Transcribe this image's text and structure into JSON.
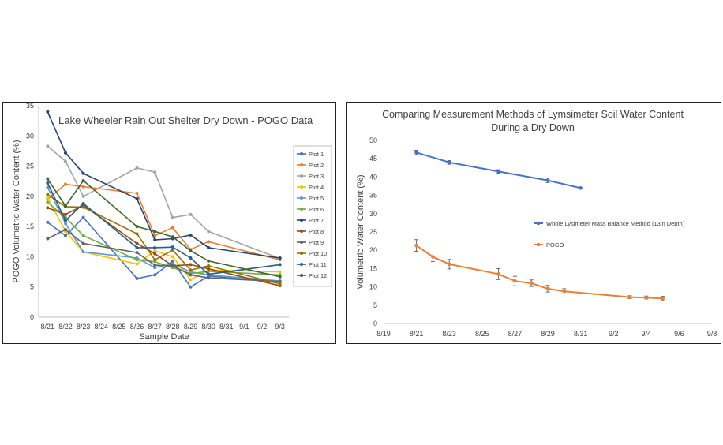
{
  "chart_data": [
    {
      "type": "line",
      "title": "Lake Wheeler Rain Out Shelter Dry Down - POGO Data",
      "xlabel": "Sample Date",
      "ylabel": "POGO Volumetric Water Content (%)",
      "categories": [
        "8/21",
        "8/22",
        "8/23",
        "8/24",
        "8/25",
        "8/26",
        "8/27",
        "8/28",
        "8/29",
        "8/30",
        "8/31",
        "9/1",
        "9/2",
        "9/3"
      ],
      "ylim": [
        0,
        35
      ],
      "yticks": [
        "0",
        "5",
        "10",
        "15",
        "20",
        "25",
        "30",
        "35"
      ],
      "grid": false,
      "legend_position": "right",
      "series": [
        {
          "name": "Plot 1",
          "color": "#4472C4",
          "values": [
            15.7,
            13.5,
            16.5,
            null,
            null,
            6.4,
            7.0,
            9.2,
            5.0,
            6.8,
            null,
            null,
            null,
            5.8
          ]
        },
        {
          "name": "Plot 2",
          "color": "#ED7D31",
          "values": [
            19.5,
            22.0,
            21.6,
            null,
            null,
            20.5,
            13.5,
            14.8,
            11.2,
            12.5,
            null,
            null,
            null,
            9.5
          ]
        },
        {
          "name": "Plot 3",
          "color": "#A5A5A5",
          "values": [
            28.3,
            25.8,
            20.0,
            null,
            null,
            24.7,
            24.0,
            16.5,
            17.0,
            14.2,
            null,
            null,
            null,
            9.7
          ]
        },
        {
          "name": "Plot 4",
          "color": "#FFC000",
          "values": [
            19.8,
            14.2,
            10.8,
            null,
            null,
            8.8,
            11.0,
            10.0,
            6.2,
            7.8,
            null,
            null,
            null,
            7.5
          ]
        },
        {
          "name": "Plot 5",
          "color": "#5B9BD5",
          "values": [
            21.5,
            15.5,
            10.8,
            null,
            null,
            9.8,
            8.2,
            8.8,
            7.5,
            7.0,
            null,
            null,
            null,
            6.0
          ]
        },
        {
          "name": "Plot 6",
          "color": "#70AD47",
          "values": [
            19.0,
            16.5,
            13.5,
            null,
            null,
            9.5,
            9.2,
            8.2,
            7.2,
            7.6,
            null,
            null,
            null,
            7.0
          ]
        },
        {
          "name": "Plot 7",
          "color": "#264478",
          "values": [
            34.0,
            27.2,
            23.8,
            null,
            null,
            19.6,
            12.8,
            13.0,
            13.6,
            11.5,
            null,
            null,
            null,
            9.8
          ]
        },
        {
          "name": "Plot 8",
          "color": "#9E480E",
          "values": [
            18.1,
            17.0,
            18.5,
            null,
            null,
            12.2,
            10.5,
            8.5,
            8.7,
            8.0,
            null,
            null,
            null,
            5.2
          ]
        },
        {
          "name": "Plot 9",
          "color": "#636363",
          "values": [
            13.0,
            14.5,
            12.2,
            null,
            null,
            10.7,
            8.6,
            8.5,
            7.0,
            6.5,
            null,
            null,
            null,
            5.9
          ]
        },
        {
          "name": "Plot 10",
          "color": "#997300",
          "values": [
            20.3,
            18.3,
            18.2,
            null,
            null,
            13.8,
            9.5,
            11.1,
            7.8,
            8.5,
            null,
            null,
            null,
            5.5
          ]
        },
        {
          "name": "Plot 11",
          "color": "#255E91",
          "values": [
            22.2,
            16.0,
            18.8,
            null,
            null,
            11.5,
            11.5,
            11.6,
            9.8,
            7.1,
            null,
            null,
            null,
            8.7
          ]
        },
        {
          "name": "Plot 12",
          "color": "#43682B",
          "values": [
            22.9,
            18.4,
            22.6,
            null,
            null,
            15.0,
            14.2,
            13.3,
            11.0,
            9.3,
            null,
            null,
            null,
            6.7
          ]
        }
      ]
    },
    {
      "type": "line",
      "title": "Comparing Measurement Methods of Lymsimeter Soil Water Content During a Dry Down",
      "xlabel": "",
      "ylabel": "Volumetric Water Content (%)",
      "xlim": [
        "8/19",
        "9/8"
      ],
      "xticks": [
        "8/19",
        "8/21",
        "8/23",
        "8/25",
        "8/27",
        "8/29",
        "8/31",
        "9/2",
        "9/4",
        "9/6",
        "9/8"
      ],
      "ylim": [
        0,
        50
      ],
      "yticks": [
        "0",
        "5",
        "10",
        "15",
        "20",
        "25",
        "30",
        "35",
        "40",
        "45",
        "50"
      ],
      "grid": false,
      "legend_position": "inline-right",
      "series": [
        {
          "name": "Whole Lysimeter Mass Balance Method (13in Depth)",
          "color": "#4472C4",
          "x": [
            "8/21",
            "8/23",
            "8/26",
            "8/29",
            "8/31"
          ],
          "y": [
            46.7,
            44.0,
            41.5,
            39.1,
            37.0
          ],
          "error": [
            0.6,
            0.5,
            0.5,
            0.6,
            0.0
          ]
        },
        {
          "name": "POGO",
          "color": "#ED7D31",
          "x": [
            "8/21",
            "8/22",
            "8/23",
            "8/26",
            "8/27",
            "8/28",
            "8/29",
            "8/30",
            "9/3",
            "9/4",
            "9/5"
          ],
          "y": [
            21.3,
            18.2,
            16.2,
            13.5,
            11.6,
            11.0,
            9.5,
            8.8,
            7.2,
            7.1,
            6.8
          ],
          "error": [
            1.6,
            1.3,
            1.3,
            1.5,
            1.3,
            0.9,
            0.9,
            0.7,
            0.4,
            0.4,
            0.6
          ]
        }
      ]
    }
  ]
}
